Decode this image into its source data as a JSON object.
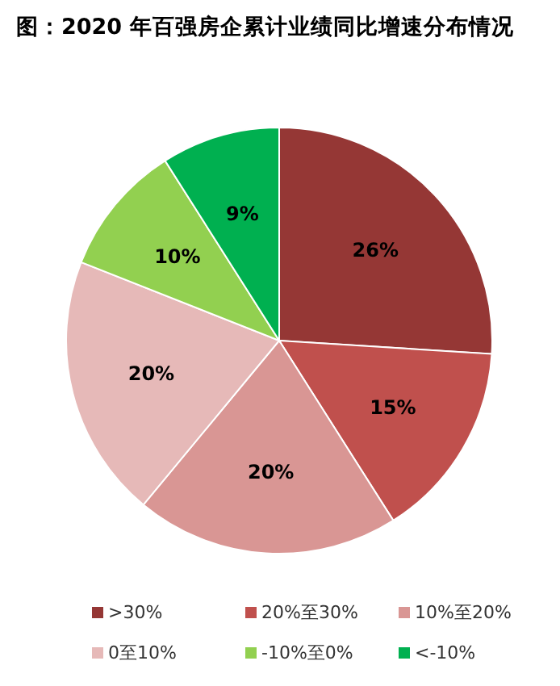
{
  "chart_data": {
    "type": "pie",
    "title": "图：2020 年百强房企累计业绩同比增速分布情况",
    "categories": [
      ">30%",
      "20%至30%",
      "10%至20%",
      "0至10%",
      "-10%至0%",
      "<-10%"
    ],
    "values": [
      26,
      15,
      20,
      20,
      10,
      9
    ],
    "colors": [
      "#953735",
      "#c0504d",
      "#d99694",
      "#e6b9b8",
      "#92d050",
      "#00b050"
    ],
    "value_labels": [
      "26%",
      "15%",
      "20%",
      "20%",
      "10%",
      "9%"
    ],
    "legend": "bottom"
  }
}
